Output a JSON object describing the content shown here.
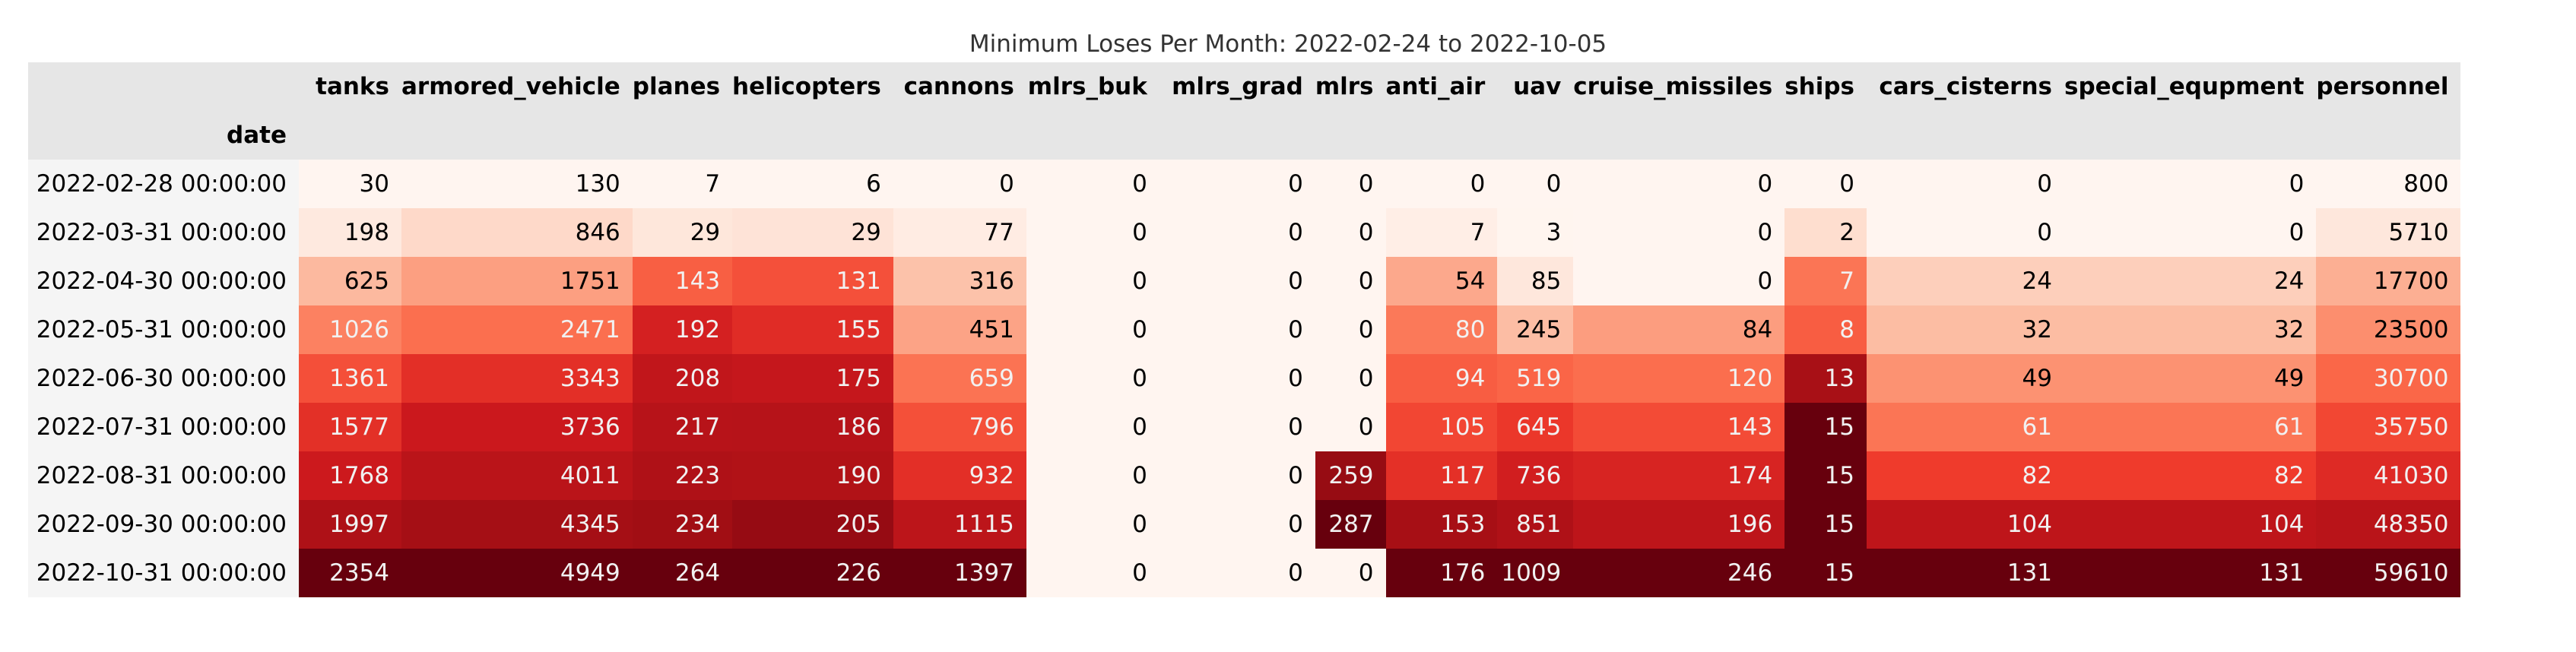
{
  "caption": "Minimum Loses Per Month: 2022-02-24 to 2022-10-05",
  "index_name": "date",
  "colors": {
    "header_bg": "#e6e6e6",
    "index_bg": "#f5f5f5",
    "scale_low": "#fff5f0",
    "scale_high": "#67000d",
    "text_dark": "#000000",
    "text_light": "#f1f1f1"
  },
  "chart_data": {
    "type": "heatmap",
    "title": "Minimum Loses Per Month: 2022-02-24 to 2022-10-05",
    "index_label": "date",
    "colormap": "Reds",
    "color_scale": "per-column",
    "columns": [
      "tanks",
      "armored_vehicle",
      "planes",
      "helicopters",
      "cannons",
      "mlrs_buk",
      "mlrs_grad",
      "mlrs",
      "anti_air",
      "uav",
      "cruise_missiles",
      "ships",
      "cars_cisterns",
      "special_equpment",
      "personnel"
    ],
    "rows": [
      {
        "date": "2022-02-28 00:00:00",
        "values": [
          30,
          130,
          7,
          6,
          0,
          0,
          0,
          0,
          0,
          0,
          0,
          0,
          0,
          0,
          800
        ]
      },
      {
        "date": "2022-03-31 00:00:00",
        "values": [
          198,
          846,
          29,
          29,
          77,
          0,
          0,
          0,
          7,
          3,
          0,
          2,
          0,
          0,
          5710
        ]
      },
      {
        "date": "2022-04-30 00:00:00",
        "values": [
          625,
          1751,
          143,
          131,
          316,
          0,
          0,
          0,
          54,
          85,
          0,
          7,
          24,
          24,
          17700
        ]
      },
      {
        "date": "2022-05-31 00:00:00",
        "values": [
          1026,
          2471,
          192,
          155,
          451,
          0,
          0,
          0,
          80,
          245,
          84,
          8,
          32,
          32,
          23500
        ]
      },
      {
        "date": "2022-06-30 00:00:00",
        "values": [
          1361,
          3343,
          208,
          175,
          659,
          0,
          0,
          0,
          94,
          519,
          120,
          13,
          49,
          49,
          30700
        ]
      },
      {
        "date": "2022-07-31 00:00:00",
        "values": [
          1577,
          3736,
          217,
          186,
          796,
          0,
          0,
          0,
          105,
          645,
          143,
          15,
          61,
          61,
          35750
        ]
      },
      {
        "date": "2022-08-31 00:00:00",
        "values": [
          1768,
          4011,
          223,
          190,
          932,
          0,
          0,
          259,
          117,
          736,
          174,
          15,
          82,
          82,
          41030
        ]
      },
      {
        "date": "2022-09-30 00:00:00",
        "values": [
          1997,
          4345,
          234,
          205,
          1115,
          0,
          0,
          287,
          153,
          851,
          196,
          15,
          104,
          104,
          48350
        ]
      },
      {
        "date": "2022-10-31 00:00:00",
        "values": [
          2354,
          4949,
          264,
          226,
          1397,
          0,
          0,
          0,
          176,
          1009,
          246,
          15,
          131,
          131,
          59610
        ]
      }
    ]
  }
}
